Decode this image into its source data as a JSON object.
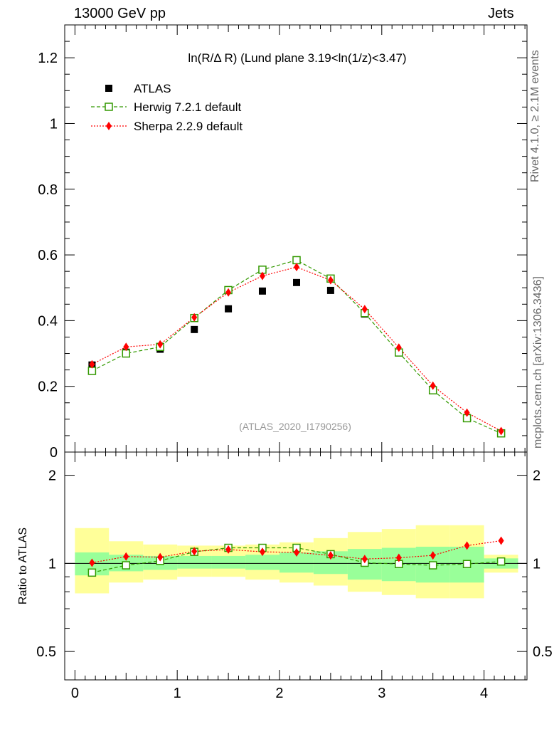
{
  "header": {
    "left": "13000 GeV pp",
    "right": "Jets"
  },
  "side_labels": {
    "top": "Rivet 4.1.0, ≥ 2.1M events",
    "bottom": "mcplots.cern.ch [arXiv:1306.3436]"
  },
  "watermark": "(ATLAS_2020_I1790256)",
  "colors": {
    "atlas": "#000000",
    "herwig": "#339900",
    "sherpa": "#ff0000",
    "band_outer": "#ffff99",
    "band_inner": "#99ff99"
  },
  "chart_data": [
    {
      "type": "scatter",
      "title": "ln(R/Δ R) (Lund plane 3.19<ln(1/z)<3.47)",
      "xlabel": "",
      "ylabel": "",
      "xlim": [
        -0.1,
        4.42
      ],
      "ylim": [
        0,
        1.3
      ],
      "y_ticks": [
        0,
        0.2,
        0.4,
        0.6,
        0.8,
        1,
        1.2
      ],
      "y_tick_labels": [
        "0",
        "0.2",
        "0.4",
        "0.6",
        "0.8",
        "1",
        "1.2"
      ],
      "x": [
        0.167,
        0.5,
        0.833,
        1.167,
        1.5,
        1.833,
        2.167,
        2.5,
        2.833,
        3.167,
        3.5,
        3.833,
        4.167
      ],
      "legend": {
        "position": "top-left",
        "entries": [
          "ATLAS",
          "Herwig 7.2.1 default",
          "Sherpa 2.2.9 default"
        ]
      },
      "series": [
        {
          "name": "ATLAS",
          "marker": "filled-square",
          "values": [
            0.265,
            0.304,
            0.313,
            0.373,
            0.436,
            0.49,
            0.516,
            0.492,
            0.42,
            0.304,
            0.19,
            0.104,
            0.056
          ]
        },
        {
          "name": "Herwig 7.2.1 default",
          "marker": "open-square",
          "line": "dashed",
          "values": [
            0.247,
            0.3,
            0.32,
            0.408,
            0.493,
            0.555,
            0.584,
            0.528,
            0.423,
            0.303,
            0.188,
            0.103,
            0.057
          ]
        },
        {
          "name": "Sherpa 2.2.9 default",
          "marker": "diamond",
          "line": "dotted",
          "values": [
            0.267,
            0.32,
            0.328,
            0.41,
            0.486,
            0.536,
            0.563,
            0.523,
            0.435,
            0.318,
            0.202,
            0.12,
            0.064
          ]
        }
      ]
    },
    {
      "type": "scatter",
      "title": "",
      "xlabel": "",
      "ylabel": "Ratio to ATLAS",
      "xlim": [
        -0.1,
        4.42
      ],
      "ylim": [
        0.4,
        2.4
      ],
      "y_scale": "log",
      "y_tick_labels": [
        "0.5",
        "1",
        "2"
      ],
      "y_ticks": [
        0.5,
        1,
        2
      ],
      "x_ticks": [
        0,
        1,
        2,
        3,
        4
      ],
      "x_tick_labels": [
        "0",
        "1",
        "2",
        "3",
        "4"
      ],
      "x": [
        0.167,
        0.5,
        0.833,
        1.167,
        1.5,
        1.833,
        2.167,
        2.5,
        2.833,
        3.167,
        3.5,
        3.833,
        4.167
      ],
      "bin_edges": [
        0,
        0.333,
        0.667,
        1,
        1.333,
        1.667,
        2,
        2.333,
        2.667,
        3,
        3.333,
        3.667,
        4,
        4.333
      ],
      "bands": {
        "outer_lo": [
          0.79,
          0.86,
          0.88,
          0.9,
          0.9,
          0.88,
          0.86,
          0.84,
          0.8,
          0.78,
          0.76,
          0.76,
          0.93
        ],
        "outer_hi": [
          1.32,
          1.19,
          1.16,
          1.15,
          1.15,
          1.16,
          1.18,
          1.22,
          1.28,
          1.31,
          1.35,
          1.35,
          1.07
        ],
        "inner_lo": [
          0.91,
          0.94,
          0.95,
          0.96,
          0.96,
          0.95,
          0.93,
          0.92,
          0.88,
          0.87,
          0.86,
          0.86,
          0.96
        ],
        "inner_hi": [
          1.09,
          1.07,
          1.06,
          1.06,
          1.06,
          1.07,
          1.09,
          1.1,
          1.12,
          1.13,
          1.14,
          1.14,
          1.04
        ]
      },
      "series": [
        {
          "name": "Herwig 7.2.1 default",
          "values": [
            0.93,
            0.985,
            1.02,
            1.095,
            1.13,
            1.13,
            1.13,
            1.075,
            1.005,
            0.995,
            0.985,
            0.995,
            1.015
          ]
        },
        {
          "name": "Sherpa 2.2.9 default",
          "values": [
            1.005,
            1.055,
            1.05,
            1.1,
            1.115,
            1.095,
            1.09,
            1.065,
            1.035,
            1.045,
            1.065,
            1.15,
            1.195
          ]
        }
      ]
    }
  ]
}
